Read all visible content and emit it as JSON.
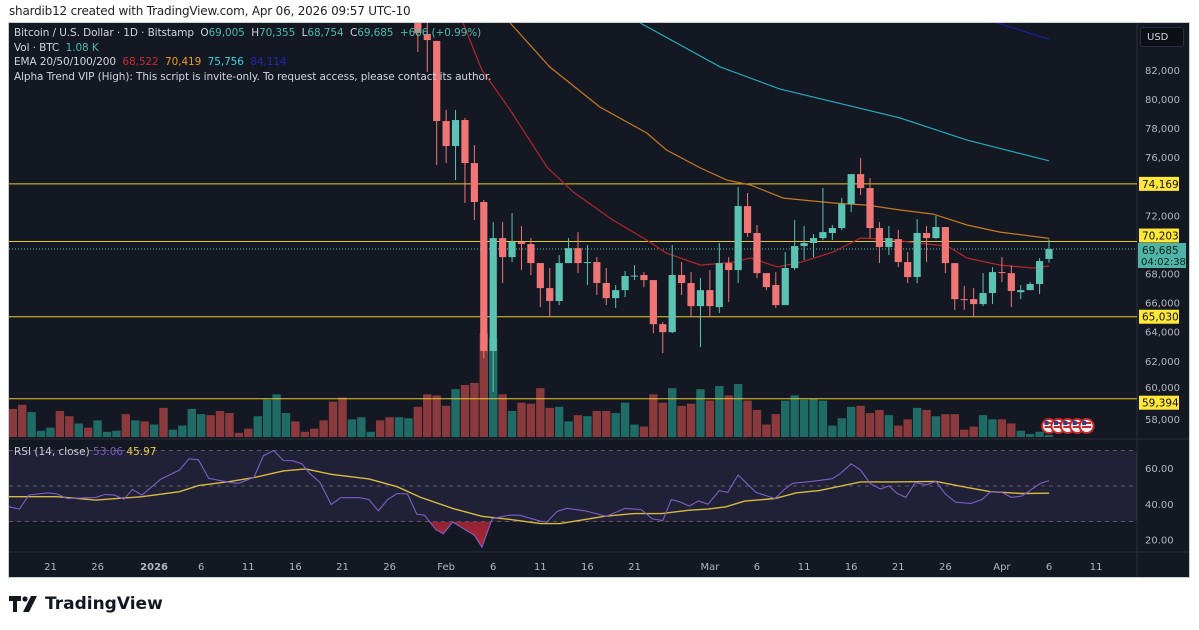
{
  "header": {
    "credit": "shardib12 created with TradingView.com, Apr 06, 2026 09:57 UTC-10"
  },
  "legend": {
    "symbol": "Bitcoin / U.S. Dollar · 1D · Bitstamp",
    "o_label": "O",
    "o": "69,005",
    "h_label": "H",
    "h": "70,355",
    "l_label": "L",
    "l": "68,754",
    "c_label": "C",
    "c": "69,685",
    "change": "+686 (+0.99%)",
    "vol_label": "Vol · BTC",
    "vol": "1.08 K",
    "ema_label": "EMA 20/50/100/200",
    "ema20": "68,522",
    "ema50": "70,419",
    "ema100": "75,756",
    "ema200": "84,114",
    "alpha_trend": "Alpha Trend VIP (High): This script is invite-only. To request access, please contact its author."
  },
  "rsi_legend": {
    "label": "RSI (14, close)",
    "rsi": "53.06",
    "ma": "45.97"
  },
  "price_axis": {
    "currency_button": "USD",
    "current_price": "69,685",
    "countdown": "04:02:38"
  },
  "logo": {
    "text": "TradingView"
  },
  "colors": {
    "up": "#5cc2b2",
    "down": "#f07575",
    "vol_up": "#1f6b66",
    "vol_down": "#8a3a3c",
    "ema20": "#b3262b",
    "ema50": "#c77a1f",
    "ema100": "#23a9b8",
    "ema200": "#1c1ca8",
    "level": "#e8c72c",
    "rsi": "#7e5fc4",
    "rsi_ma": "#d7bb3f",
    "background": "#141823"
  },
  "chart_data": {
    "type": "candlestick",
    "title": "Bitcoin / U.S. Dollar · 1D · Bitstamp",
    "ylabel": "USD",
    "ylim": [
      56500,
      85500
    ],
    "yticks": [
      "82,000",
      "80,000",
      "78,000",
      "76,000",
      "72,000",
      "68,000",
      "66,000",
      "64,000",
      "62,000",
      "60,000",
      "58,000"
    ],
    "ytick_values": [
      82000,
      80000,
      78000,
      76000,
      72000,
      68000,
      66000,
      64000,
      62000,
      60000,
      58000
    ],
    "time_labels": [
      {
        "text": "21",
        "d": -106
      },
      {
        "text": "26",
        "d": -101
      },
      {
        "text": "2026",
        "d": -95,
        "bold": true
      },
      {
        "text": "6",
        "d": -90
      },
      {
        "text": "11",
        "d": -85
      },
      {
        "text": "16",
        "d": -80
      },
      {
        "text": "21",
        "d": -75
      },
      {
        "text": "26",
        "d": -70
      },
      {
        "text": "Feb",
        "d": -64
      },
      {
        "text": "6",
        "d": -59
      },
      {
        "text": "11",
        "d": -54
      },
      {
        "text": "16",
        "d": -49
      },
      {
        "text": "21",
        "d": -44
      },
      {
        "text": "Mar",
        "d": -36
      },
      {
        "text": "6",
        "d": -31
      },
      {
        "text": "11",
        "d": -26
      },
      {
        "text": "16",
        "d": -21
      },
      {
        "text": "21",
        "d": -16
      },
      {
        "text": "26",
        "d": -11
      },
      {
        "text": "Apr",
        "d": -5
      },
      {
        "text": "6",
        "d": 0
      },
      {
        "text": "11",
        "d": 5
      }
    ],
    "candles_start": "2026-01-29",
    "candles_ohlc": [
      [
        85230,
        85500,
        83240,
        84550
      ],
      [
        84480,
        85230,
        81860,
        84060
      ],
      [
        84000,
        84000,
        75460,
        78490
      ],
      [
        78490,
        79250,
        75600,
        76770
      ],
      [
        76770,
        79250,
        74430,
        78560
      ],
      [
        78560,
        78700,
        72850,
        75600
      ],
      [
        75600,
        76840,
        71680,
        72920
      ],
      [
        72920,
        73060,
        62190,
        62670
      ],
      [
        62670,
        71540,
        59850,
        70440
      ],
      [
        70440,
        71540,
        67350,
        69130
      ],
      [
        69130,
        72160,
        68790,
        70170
      ],
      [
        70170,
        71270,
        68240,
        70030
      ],
      [
        70030,
        70440,
        67900,
        68720
      ],
      [
        68720,
        68720,
        65690,
        67000
      ],
      [
        67000,
        68380,
        65010,
        66110
      ],
      [
        66110,
        69270,
        65830,
        68720
      ],
      [
        68720,
        70440,
        68720,
        69750
      ],
      [
        69750,
        70850,
        68030,
        68720
      ],
      [
        68720,
        69960,
        67210,
        68790
      ],
      [
        68790,
        69130,
        66520,
        67350
      ],
      [
        67350,
        68380,
        65830,
        66310
      ],
      [
        66310,
        67210,
        65630,
        66860
      ],
      [
        66860,
        68170,
        66380,
        67830
      ],
      [
        67830,
        68580,
        67550,
        67860
      ],
      [
        67900,
        68100,
        67070,
        67550
      ],
      [
        67550,
        67550,
        63900,
        64520
      ],
      [
        64520,
        64660,
        62530,
        63970
      ],
      [
        63970,
        69960,
        63900,
        67900
      ],
      [
        67900,
        68790,
        66520,
        67350
      ],
      [
        67350,
        68100,
        65010,
        65760
      ],
      [
        65760,
        67690,
        62940,
        66860
      ],
      [
        66860,
        68240,
        65010,
        65760
      ],
      [
        65690,
        70100,
        65280,
        68720
      ],
      [
        68720,
        69130,
        66040,
        68240
      ],
      [
        68240,
        73950,
        67350,
        72640
      ],
      [
        72640,
        73540,
        70510,
        70790
      ],
      [
        70790,
        71340,
        67690,
        68030
      ],
      [
        68030,
        68030,
        66860,
        67070
      ],
      [
        67210,
        68100,
        65630,
        65830
      ],
      [
        65830,
        69480,
        65830,
        68380
      ],
      [
        68380,
        71680,
        68240,
        69890
      ],
      [
        69890,
        71270,
        68930,
        70100
      ],
      [
        70100,
        70720,
        69130,
        70440
      ],
      [
        70440,
        73880,
        70300,
        70850
      ],
      [
        70790,
        71340,
        70300,
        71130
      ],
      [
        71130,
        73190,
        70990,
        72780
      ],
      [
        72780,
        74840,
        72230,
        74840
      ],
      [
        74840,
        75950,
        73400,
        73880
      ],
      [
        73880,
        74570,
        70440,
        71130
      ],
      [
        71130,
        71540,
        68720,
        69820
      ],
      [
        69820,
        71270,
        69270,
        70440
      ],
      [
        70370,
        70990,
        68440,
        68790
      ],
      [
        68790,
        69480,
        67350,
        67760
      ],
      [
        67760,
        71750,
        67350,
        70790
      ],
      [
        70790,
        71270,
        68790,
        70440
      ],
      [
        70440,
        71960,
        70370,
        71200
      ],
      [
        71200,
        71200,
        68030,
        68720
      ],
      [
        68720,
        68720,
        65490,
        66240
      ],
      [
        66240,
        67140,
        65490,
        66200
      ],
      [
        66240,
        67000,
        65010,
        65900
      ],
      [
        65900,
        68030,
        65760,
        66660
      ],
      [
        66660,
        68440,
        65900,
        68100
      ],
      [
        68100,
        69130,
        67420,
        68030
      ],
      [
        68030,
        68580,
        65690,
        66800
      ],
      [
        66720,
        67210,
        66240,
        66860
      ],
      [
        66860,
        67420,
        66860,
        67280
      ],
      [
        67280,
        69060,
        66590,
        68860
      ],
      [
        69005,
        70355,
        68754,
        69685
      ]
    ],
    "volume_start": "2025-12-17",
    "volume_relative_pct": [
      27,
      31,
      24,
      6,
      9,
      25,
      20,
      13,
      9,
      16,
      5,
      6,
      22,
      16,
      15,
      12,
      28,
      7,
      11,
      27,
      22,
      21,
      25,
      23,
      4,
      8,
      20,
      36,
      41,
      23,
      15,
      5,
      8,
      16,
      34,
      38,
      17,
      19,
      5,
      16,
      19,
      19,
      18,
      29,
      41,
      40,
      30,
      46,
      50,
      52,
      100,
      95,
      41,
      25,
      33,
      32,
      47,
      28,
      29,
      15,
      21,
      20,
      25,
      25,
      23,
      33,
      12,
      10,
      41,
      33,
      47,
      30,
      32,
      46,
      35,
      49,
      40,
      51,
      35,
      26,
      12,
      22,
      35,
      40,
      36,
      37,
      35,
      11,
      18,
      29,
      30,
      23,
      26,
      21,
      11,
      17,
      28,
      26,
      20,
      22,
      22,
      7,
      10,
      21,
      17,
      17,
      13,
      6,
      3,
      5,
      2
    ],
    "volume_pre_direction": "dduuudduduuudududuuuuddddduuuudddddduuudduuu",
    "levels": [
      74169,
      70203,
      65030,
      59394
    ],
    "level_labels": [
      "74,169",
      "70,203",
      "65,030",
      "59,394"
    ],
    "current_price": 69685,
    "ema": [
      {
        "name": "EMA 20",
        "points": [
          [
            -62.2,
            85230
          ],
          [
            -60.2,
            82000
          ],
          [
            -57.2,
            79250
          ],
          [
            -53.3,
            75330
          ],
          [
            -50.5,
            73610
          ],
          [
            -46.3,
            71680
          ],
          [
            -42.7,
            70300
          ],
          [
            -40.6,
            69410
          ],
          [
            -37,
            68580
          ],
          [
            -33.5,
            68790
          ],
          [
            -31.7,
            69070
          ],
          [
            -28.8,
            68450
          ],
          [
            -26.3,
            68790
          ],
          [
            -22.9,
            69480
          ],
          [
            -20,
            70440
          ],
          [
            -17.2,
            70370
          ],
          [
            -14,
            70100
          ],
          [
            -10.8,
            69890
          ],
          [
            -8.7,
            69070
          ],
          [
            -5.2,
            68580
          ],
          [
            -1.7,
            68380
          ],
          [
            0,
            68522
          ]
        ]
      },
      {
        "name": "EMA 50",
        "points": [
          [
            -57.2,
            85230
          ],
          [
            -53,
            82210
          ],
          [
            -47.7,
            79460
          ],
          [
            -42.7,
            77670
          ],
          [
            -40.6,
            76500
          ],
          [
            -37,
            75260
          ],
          [
            -34.2,
            74430
          ],
          [
            -31.7,
            74090
          ],
          [
            -28.2,
            73190
          ],
          [
            -22.9,
            72850
          ],
          [
            -19.3,
            72710
          ],
          [
            -15.8,
            72370
          ],
          [
            -12.3,
            72090
          ],
          [
            -8.7,
            71340
          ],
          [
            -5.2,
            70850
          ],
          [
            0,
            70419
          ]
        ]
      },
      {
        "name": "EMA 100",
        "points": [
          [
            -43.4,
            85230
          ],
          [
            -34.9,
            82210
          ],
          [
            -28.6,
            80700
          ],
          [
            -15.8,
            78700
          ],
          [
            -8.7,
            77180
          ],
          [
            0,
            75756
          ]
        ]
      },
      {
        "name": "EMA 200",
        "points": [
          [
            -6.3,
            85400
          ],
          [
            0,
            84114
          ]
        ]
      }
    ],
    "rsi": {
      "ylim": [
        10,
        80
      ],
      "bands": [
        70,
        50,
        30
      ],
      "ticks": [
        "60.00",
        "40.00",
        "20.00"
      ],
      "tick_values": [
        60,
        40,
        20
      ],
      "rsi_points": [
        [
          -110.4,
          38.3
        ],
        [
          -109.3,
          37
        ],
        [
          -108.3,
          44.9
        ],
        [
          -106.3,
          46.2
        ],
        [
          -105.3,
          45.5
        ],
        [
          -104.2,
          43
        ],
        [
          -101.2,
          43.6
        ],
        [
          -100.2,
          45.3
        ],
        [
          -99.2,
          44.9
        ],
        [
          -98.2,
          42.6
        ],
        [
          -97.3,
          48.1
        ],
        [
          -96.3,
          44.9
        ],
        [
          -94.3,
          53.8
        ],
        [
          -92.3,
          59
        ],
        [
          -91.3,
          65.3
        ],
        [
          -90.3,
          64.7
        ],
        [
          -89.2,
          54.3
        ],
        [
          -87,
          52
        ],
        [
          -86,
          51.5
        ],
        [
          -84.4,
          54.9
        ],
        [
          -83.4,
          67
        ],
        [
          -82.3,
          70
        ],
        [
          -81.3,
          64.3
        ],
        [
          -80.3,
          64.2
        ],
        [
          -79.3,
          62.5
        ],
        [
          -78.5,
          57.2
        ],
        [
          -77.4,
          52
        ],
        [
          -76.2,
          39.6
        ],
        [
          -75.2,
          43.4
        ],
        [
          -73.2,
          43.4
        ],
        [
          -72.2,
          42.4
        ],
        [
          -71.2,
          36
        ],
        [
          -70.2,
          42.4
        ],
        [
          -69.2,
          45.8
        ],
        [
          -68.1,
          45.5
        ],
        [
          -67.1,
          34.1
        ],
        [
          -66.3,
          33.6
        ],
        [
          -65.1,
          25.5
        ],
        [
          -64.3,
          23.2
        ],
        [
          -63.3,
          29.8
        ],
        [
          -61,
          22.3
        ],
        [
          -60.2,
          15.7
        ],
        [
          -59.1,
          31.7
        ],
        [
          -57.3,
          33.6
        ],
        [
          -56.2,
          33.6
        ],
        [
          -54,
          30.2
        ],
        [
          -53.3,
          29.8
        ],
        [
          -52.2,
          35.8
        ],
        [
          -51.2,
          37.5
        ],
        [
          -49.2,
          36
        ],
        [
          -47,
          33
        ],
        [
          -45,
          37.4
        ],
        [
          -43.3,
          36.8
        ],
        [
          -42.1,
          31.5
        ],
        [
          -41,
          30.6
        ],
        [
          -40.1,
          42.4
        ],
        [
          -39.2,
          41.1
        ],
        [
          -38.2,
          38.7
        ],
        [
          -37.2,
          41.7
        ],
        [
          -36.2,
          39.8
        ],
        [
          -35,
          47.4
        ],
        [
          -34.1,
          46.4
        ],
        [
          -33,
          56.2
        ],
        [
          -32.1,
          51.5
        ],
        [
          -31.1,
          46.4
        ],
        [
          -29.1,
          43
        ],
        [
          -28.1,
          48.1
        ],
        [
          -27.2,
          51.5
        ],
        [
          -25.2,
          52.6
        ],
        [
          -23,
          54.1
        ],
        [
          -22.1,
          57.2
        ],
        [
          -21,
          62.5
        ],
        [
          -20,
          59
        ],
        [
          -19,
          51.5
        ],
        [
          -17.9,
          48.3
        ],
        [
          -17,
          50
        ],
        [
          -16.1,
          45.8
        ],
        [
          -15.2,
          43.6
        ],
        [
          -14.2,
          51.9
        ],
        [
          -13,
          50.6
        ],
        [
          -12,
          52.6
        ],
        [
          -11,
          45.5
        ],
        [
          -9.9,
          40.9
        ],
        [
          -8.3,
          40.2
        ],
        [
          -7.1,
          42.4
        ],
        [
          -6.2,
          46.8
        ],
        [
          -5,
          46.4
        ],
        [
          -4,
          43.6
        ],
        [
          -2.9,
          44.3
        ],
        [
          -0.9,
          51.5
        ],
        [
          0,
          53.06
        ]
      ],
      "ma_points": [
        [
          -111.4,
          44
        ],
        [
          -105.3,
          44
        ],
        [
          -101.2,
          42.1
        ],
        [
          -96.3,
          44
        ],
        [
          -92.3,
          46.8
        ],
        [
          -90.3,
          50.2
        ],
        [
          -87,
          52.5
        ],
        [
          -84.4,
          54.7
        ],
        [
          -81.3,
          58.5
        ],
        [
          -78.9,
          59.6
        ],
        [
          -76.2,
          56.6
        ],
        [
          -72.2,
          54
        ],
        [
          -69.2,
          49.6
        ],
        [
          -66.7,
          43.6
        ],
        [
          -63.3,
          37.4
        ],
        [
          -60.2,
          33
        ],
        [
          -57.3,
          31.3
        ],
        [
          -54,
          28.9
        ],
        [
          -51.9,
          28.9
        ],
        [
          -47.2,
          33
        ],
        [
          -44.1,
          34.5
        ],
        [
          -41.1,
          34.5
        ],
        [
          -38.2,
          36.4
        ],
        [
          -36.2,
          37
        ],
        [
          -34.3,
          38.3
        ],
        [
          -32.3,
          41.5
        ],
        [
          -29.1,
          43
        ],
        [
          -26.8,
          46.2
        ],
        [
          -24.4,
          47.4
        ],
        [
          -20,
          52.3
        ],
        [
          -16.6,
          52.3
        ],
        [
          -12,
          52.6
        ],
        [
          -8.7,
          49.2
        ],
        [
          -6.2,
          46.8
        ],
        [
          -2.9,
          45.8
        ],
        [
          0,
          45.97
        ]
      ]
    }
  }
}
